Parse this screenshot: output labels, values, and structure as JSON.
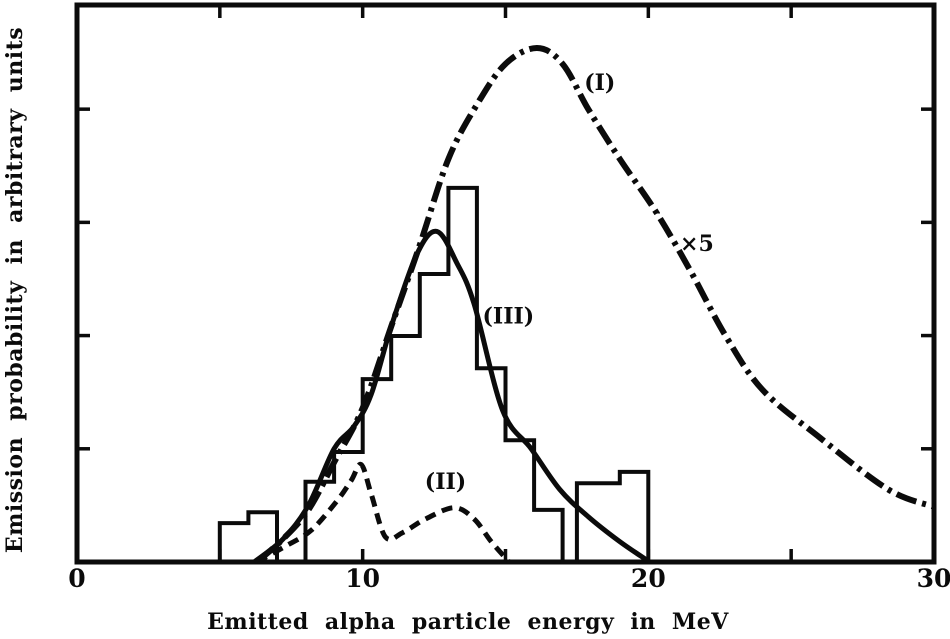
{
  "figure": {
    "background": "#ffffff",
    "ink_color": "#0b0b0b",
    "description": "Scanned line chart: alpha particle emission spectrum with histogram and three curves"
  },
  "chart_data": {
    "type": "line",
    "title": "",
    "xlabel": "Emitted alpha particle energy in MeV",
    "ylabel": "Emission probability in arbitrary units",
    "xlim": [
      0,
      30
    ],
    "ylim": [
      0,
      123
    ],
    "grid": false,
    "x_tick_labels": [
      {
        "value": 0,
        "label": "0"
      },
      {
        "value": 10,
        "label": "10"
      },
      {
        "value": 20,
        "label": "20"
      },
      {
        "value": 30,
        "label": "30"
      }
    ],
    "x_minor_ticks": [
      5,
      10,
      15,
      20,
      25
    ],
    "y_minor_ticks": [
      25,
      50,
      75,
      100
    ],
    "y_tick_labels_shown": false,
    "series": [
      {
        "id": "I",
        "name": "(I)",
        "style": "dash-dot",
        "scale_note": "×5",
        "points": [
          [
            6.3,
            0
          ],
          [
            7.2,
            5
          ],
          [
            8.1,
            11.5
          ],
          [
            9,
            22
          ],
          [
            10,
            34
          ],
          [
            11,
            52
          ],
          [
            12,
            70
          ],
          [
            13,
            89
          ],
          [
            14,
            101
          ],
          [
            15,
            110
          ],
          [
            16.1,
            113.5
          ],
          [
            17,
            110
          ],
          [
            17.9,
            100
          ],
          [
            19,
            89
          ],
          [
            20.3,
            77
          ],
          [
            21.5,
            64
          ],
          [
            22.7,
            50
          ],
          [
            24,
            38
          ],
          [
            26,
            27.5
          ],
          [
            28.4,
            16
          ],
          [
            30,
            12.2
          ]
        ]
      },
      {
        "id": "II",
        "name": "(II)",
        "style": "dashed",
        "points": [
          [
            6.3,
            0
          ],
          [
            7.3,
            3.5
          ],
          [
            8.2,
            7
          ],
          [
            9.1,
            13.5
          ],
          [
            9.6,
            18
          ],
          [
            9.95,
            21.5
          ],
          [
            10.3,
            15
          ],
          [
            10.8,
            5.5
          ],
          [
            11.4,
            6.5
          ],
          [
            12.2,
            9.5
          ],
          [
            13.2,
            12
          ],
          [
            13.9,
            9.5
          ],
          [
            14.5,
            4.5
          ],
          [
            15.1,
            0.2
          ]
        ]
      },
      {
        "id": "III",
        "name": "(III)",
        "style": "solid",
        "points": [
          [
            6.2,
            0
          ],
          [
            7.2,
            5
          ],
          [
            8.1,
            12.5
          ],
          [
            9,
            25
          ],
          [
            9.7,
            30
          ],
          [
            10.3,
            37
          ],
          [
            11,
            52
          ],
          [
            11.9,
            68
          ],
          [
            12.6,
            73
          ],
          [
            13.3,
            66
          ],
          [
            13.9,
            57
          ],
          [
            14.9,
            33.5
          ],
          [
            15.9,
            25
          ],
          [
            16.9,
            16
          ],
          [
            17.9,
            10
          ],
          [
            19,
            4.5
          ],
          [
            20,
            0.2
          ]
        ]
      }
    ],
    "histogram": {
      "name": "measured-spectrum-histogram",
      "bin_edges": [
        5,
        6,
        7,
        8,
        9,
        10,
        11,
        12,
        13,
        14,
        15,
        16,
        17,
        17.5,
        19,
        20
      ],
      "values": [
        8.6,
        11.0,
        0,
        17.7,
        24.3,
        40.4,
        49.9,
        63.6,
        82.6,
        42.8,
        26.9,
        11.5,
        0,
        17.4,
        19.9
      ]
    },
    "annotations": [
      {
        "name": "curve-label-I",
        "text": "(I)",
        "x": 18.3,
        "y": 105.5
      },
      {
        "name": "scale-factor-label",
        "text": "×5",
        "x": 21.7,
        "y": 70
      },
      {
        "name": "curve-label-II",
        "text": "(II)",
        "x": 12.9,
        "y": 17.5
      },
      {
        "name": "curve-label-III",
        "text": "(III)",
        "x": 15.1,
        "y": 54
      }
    ]
  }
}
